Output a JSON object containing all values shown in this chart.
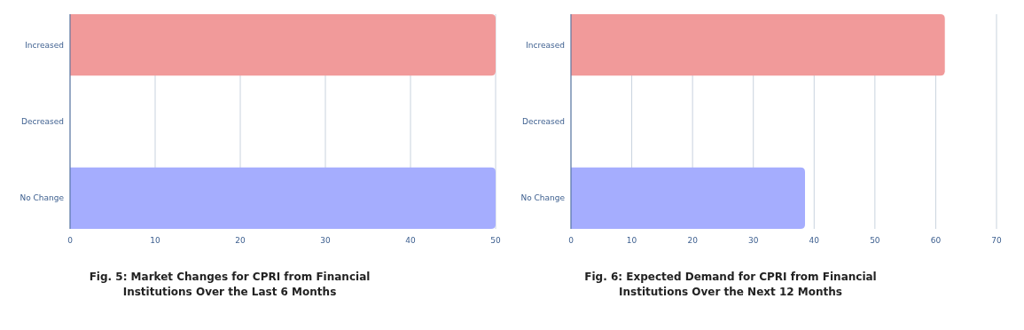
{
  "chart_data": [
    {
      "type": "bar",
      "orientation": "horizontal",
      "title": "Fig. 5: Market Changes for CPRI from Financial Institutions Over the Last 6 Months",
      "categories": [
        "Increased",
        "Decreased",
        "No Change"
      ],
      "values": [
        50,
        0,
        50
      ],
      "colors": [
        "#f19a9a",
        "#4a5f8a",
        "#a5adfe"
      ],
      "xlim": [
        0,
        50
      ],
      "xticks": [
        0,
        10,
        20,
        30,
        40,
        50
      ],
      "grid": "x"
    },
    {
      "type": "bar",
      "orientation": "horizontal",
      "title": "Fig. 6: Expected Demand for CPRI from Financial Institutions Over the Next 12 Months",
      "categories": [
        "Increased",
        "Decreased",
        "No Change"
      ],
      "values": [
        61.5,
        0,
        38.5
      ],
      "colors": [
        "#f19a9a",
        "#4a5f8a",
        "#a5adfe"
      ],
      "xlim": [
        0,
        70
      ],
      "xticks": [
        0,
        10,
        20,
        30,
        40,
        50,
        60,
        70
      ],
      "grid": "x"
    }
  ]
}
